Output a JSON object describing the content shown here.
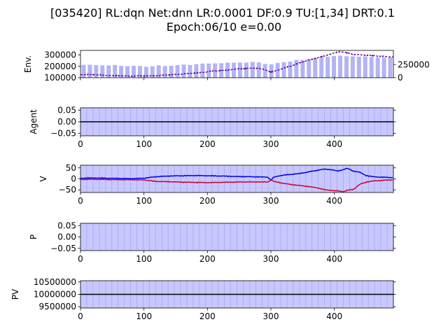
{
  "figure": {
    "title_line1": "[035420] RL:dqn Net:dnn LR:0.0001 DF:0.9 TU:[1,34] DRT:0.1",
    "title_line2": "Epoch:06/10 e=0.00"
  },
  "colors": {
    "bar": "#b3b3f5",
    "shade": "#c8c8ff",
    "stripe": "#a8a8f0",
    "blue": "#0000ee",
    "red": "#cc0033",
    "purple": "#5a1a8a",
    "black": "#000000"
  },
  "chart_data": [
    {
      "id": "env",
      "type": "bar+line",
      "ylabel": "Env.",
      "xlim": [
        0,
        493
      ],
      "ylim": [
        100000,
        340000
      ],
      "yticks": [
        100000,
        200000,
        300000
      ],
      "ytick_labels": [
        "100000",
        "200000",
        "300000"
      ],
      "y2lim": [
        0,
        520000
      ],
      "y2ticks": [
        0,
        250000
      ],
      "y2tick_labels": [
        "0",
        "250000"
      ],
      "show_xtick_labels": false,
      "price_keypoints": {
        "x": [
          0,
          25,
          50,
          75,
          100,
          125,
          150,
          175,
          200,
          225,
          250,
          275,
          290,
          300,
          310,
          330,
          350,
          370,
          385,
          400,
          410,
          420,
          430,
          450,
          470,
          493
        ],
        "y": [
          128000,
          126000,
          118000,
          116000,
          115000,
          120000,
          128000,
          138000,
          152000,
          165000,
          178000,
          185000,
          172000,
          150000,
          165000,
          200000,
          240000,
          270000,
          292000,
          318000,
          330000,
          318000,
          305000,
          298000,
          290000,
          282000
        ]
      },
      "volume_keypoints": {
        "x": [
          0,
          50,
          100,
          150,
          200,
          250,
          280,
          300,
          320,
          350,
          380,
          400,
          420,
          450,
          493
        ],
        "y": [
          245000,
          235000,
          215000,
          235000,
          270000,
          290000,
          295000,
          250000,
          300000,
          340000,
          390000,
          420000,
          410000,
          400000,
          380000
        ]
      }
    },
    {
      "id": "agent",
      "type": "line",
      "ylabel": "Agent",
      "xlim": [
        0,
        493
      ],
      "ylim": [
        -0.06,
        0.06
      ],
      "yticks": [
        -0.05,
        0.0,
        0.05
      ],
      "ytick_labels": [
        "−0.05",
        "0.00",
        "0.05"
      ],
      "xticks": [
        0,
        100,
        200,
        300,
        400
      ],
      "xtick_labels": [
        "0",
        "100",
        "200",
        "300",
        "400"
      ],
      "series": [
        {
          "values_constant": 0.0
        }
      ]
    },
    {
      "id": "v",
      "type": "line",
      "ylabel": "V",
      "xlim": [
        0,
        493
      ],
      "ylim": [
        -62,
        62
      ],
      "yticks": [
        -50,
        0,
        50
      ],
      "ytick_labels": [
        "−50",
        "0",
        "50"
      ],
      "xticks": [
        0,
        100,
        200,
        300,
        400
      ],
      "xtick_labels": [
        "0",
        "100",
        "200",
        "300",
        "400"
      ],
      "series": [
        {
          "color_key": "blue",
          "x": [
            0,
            20,
            40,
            60,
            80,
            100,
            120,
            140,
            160,
            180,
            200,
            220,
            240,
            260,
            280,
            295,
            300,
            305,
            315,
            330,
            345,
            360,
            375,
            385,
            395,
            405,
            415,
            420,
            430,
            440,
            450,
            460,
            470,
            480,
            493
          ],
          "y": [
            3,
            4,
            3,
            2,
            1,
            3,
            10,
            13,
            14,
            15,
            14,
            13,
            11,
            10,
            9,
            8,
            -5,
            8,
            15,
            20,
            24,
            32,
            40,
            44,
            42,
            35,
            43,
            48,
            35,
            30,
            15,
            10,
            8,
            7,
            6
          ]
        },
        {
          "color_key": "red",
          "x": [
            0,
            20,
            40,
            60,
            80,
            100,
            120,
            140,
            160,
            180,
            200,
            220,
            240,
            260,
            280,
            295,
            300,
            305,
            315,
            330,
            345,
            360,
            375,
            385,
            395,
            405,
            415,
            420,
            430,
            440,
            450,
            460,
            470,
            480,
            493
          ],
          "y": [
            -3,
            -2,
            -3,
            -4,
            -4,
            -5,
            -12,
            -13,
            -15,
            -16,
            -17,
            -16,
            -15,
            -14,
            -14,
            -15,
            -5,
            -12,
            -18,
            -25,
            -30,
            -35,
            -42,
            -50,
            -52,
            -55,
            -58,
            -52,
            -48,
            -25,
            -15,
            -10,
            -8,
            -6,
            -5
          ]
        }
      ]
    },
    {
      "id": "p",
      "type": "line",
      "ylabel": "P",
      "xlim": [
        0,
        493
      ],
      "ylim": [
        -0.06,
        0.06
      ],
      "yticks": [
        -0.05,
        0.0,
        0.05
      ],
      "ytick_labels": [
        "−0.05",
        "0.00",
        "0.05"
      ],
      "xticks": [
        0,
        100,
        200,
        300,
        400
      ],
      "xtick_labels": [
        "0",
        "100",
        "200",
        "300",
        "400"
      ],
      "series": []
    },
    {
      "id": "pv",
      "type": "line",
      "ylabel": "PV",
      "xlim": [
        0,
        493
      ],
      "ylim": [
        9450000,
        10550000
      ],
      "yticks": [
        9500000,
        10000000,
        10500000
      ],
      "ytick_labels": [
        "9500000",
        "10000000",
        "10500000"
      ],
      "xticks": [
        0,
        100,
        200,
        300,
        400
      ],
      "xtick_labels": [
        "0",
        "100",
        "200",
        "300",
        "400"
      ],
      "series": [
        {
          "values_constant": 10000000
        }
      ]
    }
  ]
}
